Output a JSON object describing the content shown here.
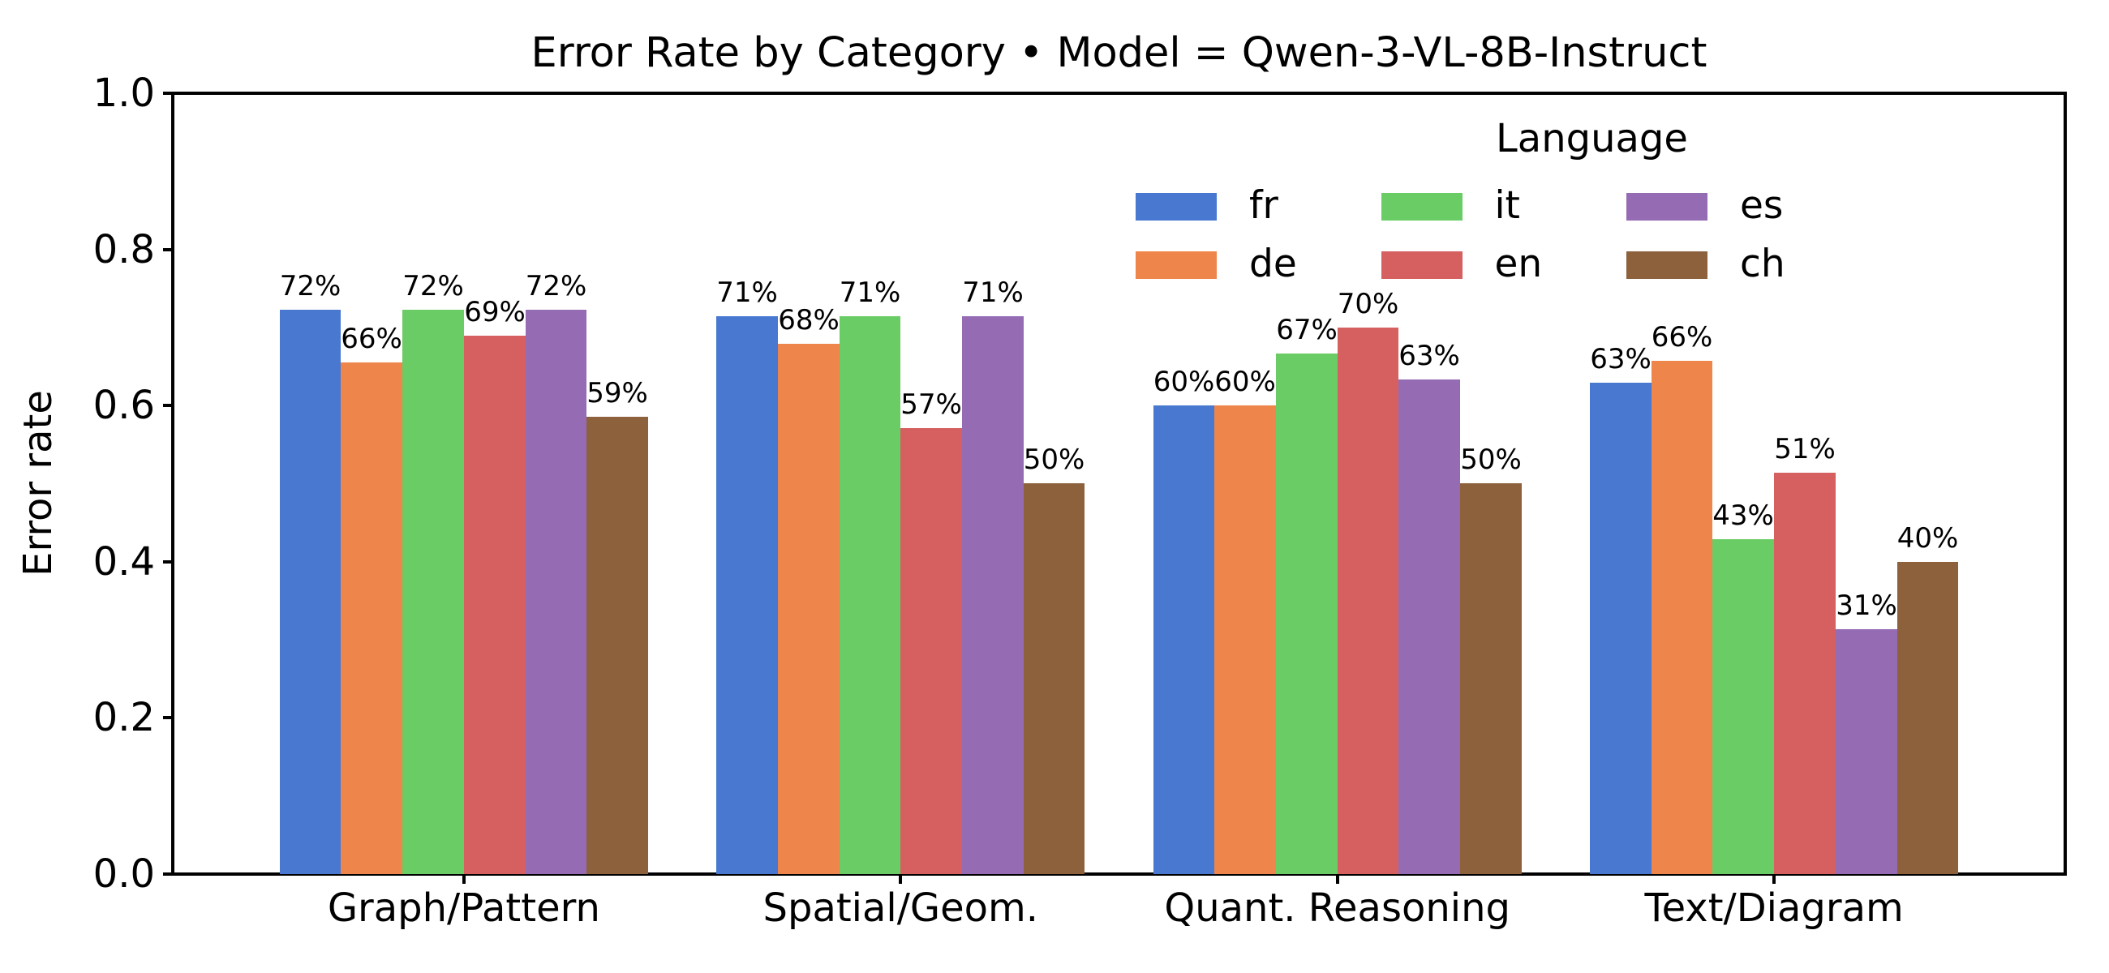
{
  "chart_data": {
    "type": "bar",
    "title": "Error Rate by Category • Model = Qwen-3-VL-8B-Instruct",
    "xlabel": "",
    "ylabel": "Error rate",
    "categories": [
      "Graph/Pattern",
      "Spatial/Geom.",
      "Quant. Reasoning",
      "Text/Diagram"
    ],
    "series": [
      {
        "name": "fr",
        "color": "#4878d0",
        "values": [
          0.723,
          0.714,
          0.6,
          0.629
        ],
        "labels": [
          "72%",
          "71%",
          "60%",
          "63%"
        ]
      },
      {
        "name": "de",
        "color": "#ee854a",
        "values": [
          0.655,
          0.679,
          0.6,
          0.657
        ],
        "labels": [
          "66%",
          "68%",
          "60%",
          "66%"
        ]
      },
      {
        "name": "it",
        "color": "#6acc64",
        "values": [
          0.723,
          0.714,
          0.667,
          0.429
        ],
        "labels": [
          "72%",
          "71%",
          "67%",
          "43%"
        ]
      },
      {
        "name": "en",
        "color": "#d65f5f",
        "values": [
          0.69,
          0.571,
          0.7,
          0.514
        ],
        "labels": [
          "69%",
          "57%",
          "70%",
          "51%"
        ]
      },
      {
        "name": "es",
        "color": "#956cb4",
        "values": [
          0.723,
          0.714,
          0.633,
          0.314
        ],
        "labels": [
          "72%",
          "71%",
          "63%",
          "31%"
        ]
      },
      {
        "name": "ch",
        "color": "#8c613c",
        "values": [
          0.586,
          0.5,
          0.5,
          0.4
        ],
        "labels": [
          "59%",
          "50%",
          "50%",
          "40%"
        ]
      }
    ],
    "ylim": [
      0.0,
      1.0
    ],
    "xlim": [
      -0.6665,
      3.6665
    ],
    "yticks": [
      "0.0",
      "0.2",
      "0.4",
      "0.6",
      "0.8",
      "1.0"
    ],
    "grid": false,
    "legend": {
      "title": "Language",
      "position": "upper right",
      "ncol": 4,
      "order_note": "column-major: fr,de | it,en | es | ch"
    },
    "bar_label_format": "percent",
    "axis_color": "#000000",
    "background_color": "#ffffff",
    "text_color": "#000000"
  }
}
